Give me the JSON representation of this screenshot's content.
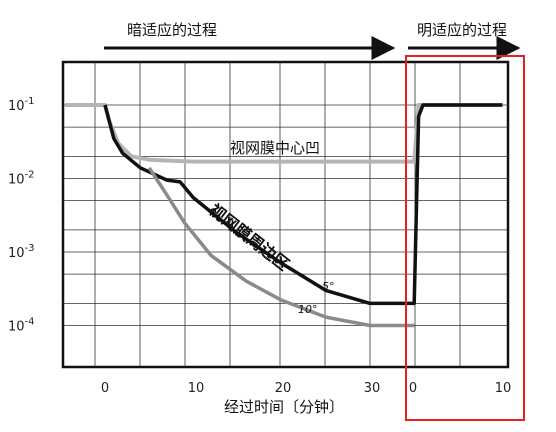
{
  "chart_data": {
    "type": "line",
    "phase_labels": {
      "dark": "暗适应的过程",
      "light": "明适应的过程"
    },
    "xlabel": "经过时间〔分钟〕",
    "x_ticks_dark": [
      "0",
      "10",
      "20",
      "30"
    ],
    "x_ticks_light": [
      "0",
      "10"
    ],
    "y_ticks": [
      {
        "base": "10",
        "exp": "-1",
        "value": 0.1
      },
      {
        "base": "10",
        "exp": "-2",
        "value": 0.01
      },
      {
        "base": "10",
        "exp": "-3",
        "value": 0.001
      },
      {
        "base": "10",
        "exp": "-4",
        "value": 0.0001
      }
    ],
    "yscale": "log",
    "ylim": [
      5e-05,
      0.2
    ],
    "grid": true,
    "series": [
      {
        "name": "视网膜中心凹",
        "color": "#b5b5b5",
        "points": [
          [
            -8,
            0.1
          ],
          [
            0,
            0.1
          ],
          [
            0.5,
            0.06
          ],
          [
            1.5,
            0.03
          ],
          [
            3,
            0.02
          ],
          [
            5,
            0.018
          ],
          [
            10,
            0.017
          ],
          [
            20,
            0.017
          ],
          [
            30,
            0.017
          ],
          [
            35,
            0.017
          ],
          [
            35.5,
            0.1
          ],
          [
            45,
            0.1
          ]
        ]
      },
      {
        "name": "视网膜周边区",
        "label_small": "5°",
        "color": "#111111",
        "points": [
          [
            0,
            0.1
          ],
          [
            1,
            0.035
          ],
          [
            2,
            0.022
          ],
          [
            4,
            0.014
          ],
          [
            7,
            0.0095
          ],
          [
            8.5,
            0.009
          ],
          [
            10,
            0.0055
          ],
          [
            12,
            0.0035
          ],
          [
            15,
            0.0018
          ],
          [
            20,
            0.0007
          ],
          [
            25,
            0.0003
          ],
          [
            30,
            0.0002
          ],
          [
            35,
            0.0002
          ],
          [
            35.5,
            0.07
          ],
          [
            36,
            0.1
          ],
          [
            45,
            0.1
          ]
        ]
      },
      {
        "name": "",
        "label_small": "10°",
        "color": "#8a8a8a",
        "points": [
          [
            5,
            0.014
          ],
          [
            7,
            0.006
          ],
          [
            9,
            0.0025
          ],
          [
            12,
            0.0009
          ],
          [
            16,
            0.0004
          ],
          [
            20,
            0.00022
          ],
          [
            25,
            0.00013
          ],
          [
            30,
            0.0001
          ],
          [
            35,
            0.0001
          ]
        ]
      }
    ],
    "highlight_color": "#e32222"
  }
}
